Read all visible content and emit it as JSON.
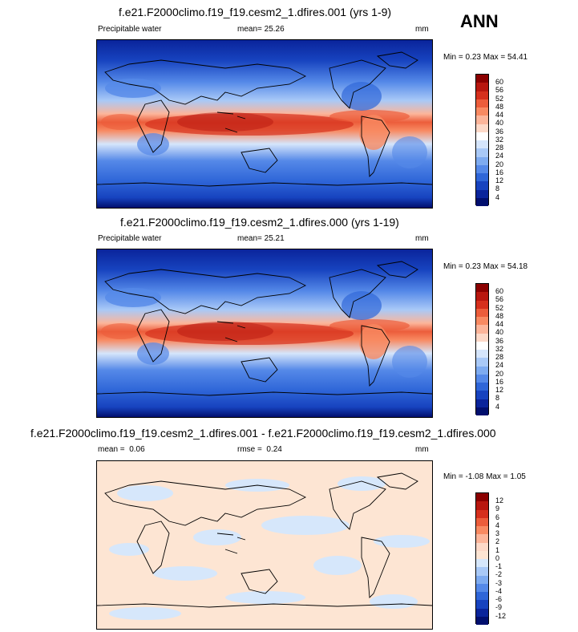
{
  "season": "ANN",
  "panels": [
    {
      "title": "f.e21.F2000climo.f19_f19.cesm2_1.dfires.001 (yrs 1-9)",
      "left_label": "Precipitable water",
      "stat_label": "mean=",
      "stat_value": "25.26",
      "units": "mm",
      "minmax": "Min =  0.23 Max =  54.41",
      "colorbar": [
        "60",
        "56",
        "52",
        "48",
        "44",
        "40",
        "36",
        "32",
        "28",
        "24",
        "20",
        "16",
        "12",
        "8",
        "4"
      ]
    },
    {
      "title": "f.e21.F2000climo.f19_f19.cesm2_1.dfires.000 (yrs 1-19)",
      "left_label": "Precipitable water",
      "stat_label": "mean=",
      "stat_value": "25.21",
      "units": "mm",
      "minmax": "Min =  0.23 Max =  54.18",
      "colorbar": [
        "60",
        "56",
        "52",
        "48",
        "44",
        "40",
        "36",
        "32",
        "28",
        "24",
        "20",
        "16",
        "12",
        "8",
        "4"
      ]
    },
    {
      "title": "f.e21.F2000climo.f19_f19.cesm2_1.dfires.001 - f.e21.F2000climo.f19_f19.cesm2_1.dfires.000",
      "left_label": "mean =",
      "left_value": "0.06",
      "stat_label": "rmse =",
      "stat_value": "0.24",
      "units": "mm",
      "minmax": "Min = -1.08 Max =  1.05",
      "colorbar": [
        "12",
        "9",
        "6",
        "4",
        "3",
        "2",
        "1",
        "0",
        "-1",
        "-2",
        "-3",
        "-4",
        "-6",
        "-9",
        "-12"
      ]
    }
  ],
  "colors": {
    "abs_scale": [
      "#8b0000",
      "#b8170f",
      "#d6301d",
      "#ec5d3b",
      "#f88a62",
      "#fcb59a",
      "#fdd9c8",
      "#ffffff",
      "#d5e5fb",
      "#a9c9f7",
      "#7eabf0",
      "#5589e8",
      "#2f66d8",
      "#1743bf",
      "#0a249b",
      "#010f6e"
    ],
    "diff_scale": [
      "#8b0000",
      "#b8170f",
      "#d6301d",
      "#ec5d3b",
      "#f88a62",
      "#fcb59a",
      "#fdd9c8",
      "#fde5d3",
      "#d6e7fb",
      "#a9c9f7",
      "#7eabf0",
      "#5589e8",
      "#2f66d8",
      "#1743bf",
      "#0a249b",
      "#010f6e"
    ]
  }
}
